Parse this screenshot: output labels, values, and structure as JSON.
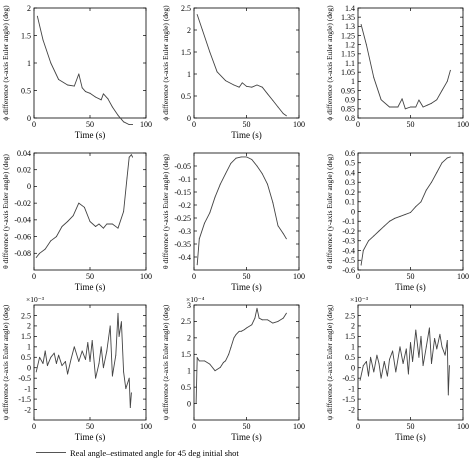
{
  "legend": {
    "label": "Real angle–estimated angle for 45 deg initial shot",
    "color": "#444444"
  },
  "chart_data": [
    {
      "type": "line",
      "panel": "phi-1",
      "xlabel": "Time (s)",
      "ylabel": "ϕ difference (x-axis Euler angle) (deg)",
      "xlim": [
        0,
        100
      ],
      "ylim": [
        0,
        2
      ],
      "xticks": [
        0,
        50,
        100
      ],
      "yticks": [
        0,
        0.5,
        1,
        1.5,
        2
      ],
      "multiplier": "",
      "series": [
        {
          "x": [
            3,
            8,
            15,
            22,
            30,
            36,
            40,
            43,
            46,
            50,
            55,
            60,
            62,
            66,
            70,
            75,
            80,
            85,
            88
          ],
          "y": [
            1.85,
            1.42,
            1.0,
            0.7,
            0.6,
            0.58,
            0.8,
            0.55,
            0.48,
            0.45,
            0.38,
            0.33,
            0.44,
            0.35,
            0.2,
            0.05,
            -0.07,
            -0.12,
            -0.12
          ]
        }
      ]
    },
    {
      "type": "line",
      "panel": "phi-2",
      "xlabel": "Time (s)",
      "ylabel": "ϕ difference (x-axis Euler angle) (deg)",
      "xlim": [
        0,
        100
      ],
      "ylim": [
        0,
        2.5
      ],
      "xticks": [
        0,
        50,
        100
      ],
      "yticks": [
        0,
        0.5,
        1,
        1.5,
        2,
        2.5
      ],
      "multiplier": "",
      "series": [
        {
          "x": [
            3,
            8,
            15,
            22,
            30,
            38,
            43,
            46,
            50,
            55,
            60,
            65,
            70,
            75,
            80,
            85,
            88
          ],
          "y": [
            2.35,
            2.0,
            1.5,
            1.05,
            0.85,
            0.75,
            0.7,
            0.8,
            0.72,
            0.7,
            0.75,
            0.7,
            0.55,
            0.4,
            0.25,
            0.1,
            0.05
          ]
        }
      ]
    },
    {
      "type": "line",
      "panel": "phi-3",
      "xlabel": "",
      "ylabel": "ϕ difference (x-axis Euler angle) (deg)",
      "xlim": [
        0,
        100
      ],
      "ylim": [
        0.8,
        1.4
      ],
      "xticks": [
        0,
        50,
        100
      ],
      "yticks": [
        0.8,
        0.85,
        0.9,
        0.95,
        1,
        1.05,
        1.1,
        1.15,
        1.2,
        1.25,
        1.3,
        1.35,
        1.4
      ],
      "multiplier": "",
      "series": [
        {
          "x": [
            3,
            8,
            15,
            22,
            30,
            38,
            42,
            45,
            50,
            55,
            58,
            62,
            66,
            70,
            75,
            80,
            85,
            88
          ],
          "y": [
            1.31,
            1.2,
            1.02,
            0.9,
            0.86,
            0.86,
            0.905,
            0.85,
            0.86,
            0.86,
            0.898,
            0.86,
            0.87,
            0.88,
            0.9,
            0.95,
            1.0,
            1.06
          ]
        }
      ]
    },
    {
      "type": "line",
      "panel": "theta-1",
      "xlabel": "Time (s)",
      "ylabel": "θ difference (y-axis Euler angle) (deg)",
      "xlim": [
        0,
        100
      ],
      "ylim": [
        -0.1,
        0.04
      ],
      "xticks": [
        0,
        50,
        100
      ],
      "yticks": [
        -0.08,
        -0.06,
        -0.04,
        -0.02,
        0,
        0.02,
        0.04
      ],
      "multiplier": "",
      "series": [
        {
          "x": [
            2,
            5,
            10,
            15,
            20,
            25,
            30,
            35,
            40,
            45,
            50,
            55,
            58,
            62,
            65,
            70,
            75,
            80,
            83,
            85,
            87,
            88
          ],
          "y": [
            -0.085,
            -0.08,
            -0.075,
            -0.065,
            -0.06,
            -0.048,
            -0.042,
            -0.035,
            -0.02,
            -0.025,
            -0.042,
            -0.048,
            -0.045,
            -0.05,
            -0.045,
            -0.045,
            -0.05,
            -0.03,
            0.01,
            0.035,
            0.038,
            0.035
          ]
        }
      ]
    },
    {
      "type": "line",
      "panel": "theta-2",
      "xlabel": "Time (s)",
      "ylabel": "θ difference (y-axis Euler angle) (deg)",
      "xlim": [
        0,
        100
      ],
      "ylim": [
        -0.45,
        -0.0
      ],
      "xticks": [
        0,
        50,
        100
      ],
      "yticks": [
        -0.4,
        -0.35,
        -0.3,
        -0.25,
        -0.2,
        -0.15,
        -0.1,
        -0.05
      ],
      "multiplier": "",
      "series": [
        {
          "x": [
            3,
            5,
            10,
            15,
            20,
            25,
            30,
            35,
            40,
            45,
            50,
            55,
            60,
            65,
            70,
            75,
            80,
            85,
            88
          ],
          "y": [
            -0.43,
            -0.33,
            -0.27,
            -0.23,
            -0.17,
            -0.12,
            -0.08,
            -0.04,
            -0.02,
            -0.015,
            -0.015,
            -0.025,
            -0.05,
            -0.08,
            -0.12,
            -0.19,
            -0.28,
            -0.31,
            -0.33
          ]
        }
      ]
    },
    {
      "type": "line",
      "panel": "theta-3",
      "xlabel": "Time (s)",
      "ylabel": "θ difference (y-axis Euler angle) (deg)",
      "xlim": [
        0,
        100
      ],
      "ylim": [
        -0.6,
        0.6
      ],
      "xticks": [
        0,
        50,
        100
      ],
      "yticks": [
        -0.6,
        -0.5,
        -0.4,
        -0.3,
        -0.2,
        -0.1,
        0,
        0.1,
        0.2,
        0.3,
        0.4,
        0.5,
        0.6
      ],
      "multiplier": "",
      "series": [
        {
          "x": [
            3,
            5,
            10,
            15,
            20,
            25,
            30,
            35,
            40,
            45,
            50,
            55,
            60,
            65,
            70,
            75,
            80,
            85,
            88
          ],
          "y": [
            -0.55,
            -0.4,
            -0.3,
            -0.25,
            -0.2,
            -0.15,
            -0.1,
            -0.07,
            -0.05,
            -0.03,
            -0.01,
            0.05,
            0.1,
            0.22,
            0.3,
            0.4,
            0.5,
            0.55,
            0.56
          ]
        }
      ]
    },
    {
      "type": "line",
      "panel": "psi-1",
      "xlabel": "Time (s)",
      "ylabel": "ψ difference (z-axis Euler angle) (deg)",
      "xlim": [
        0,
        100
      ],
      "ylim": [
        -2.5,
        3
      ],
      "xticks": [
        0,
        50,
        100
      ],
      "yticks": [
        -2,
        -1.5,
        -1,
        -0.5,
        0,
        0.5,
        1,
        1.5,
        2,
        2.5
      ],
      "multiplier": "×10⁻³",
      "series": [
        {
          "x": [
            2,
            5,
            8,
            10,
            12,
            15,
            18,
            20,
            22,
            25,
            28,
            30,
            33,
            36,
            40,
            43,
            46,
            48,
            50,
            52,
            55,
            58,
            60,
            62,
            65,
            68,
            70,
            73,
            75,
            76,
            78,
            80,
            82,
            85,
            86,
            87
          ],
          "y": [
            -0.2,
            0.5,
            0.2,
            0.8,
            0.1,
            0.5,
            0.7,
            0.2,
            0.6,
            0.1,
            0.3,
            -0.3,
            0.4,
            1.0,
            0.3,
            0.8,
            0.4,
            1.2,
            0.3,
            1.3,
            -0.5,
            0.2,
            1.0,
            0.0,
            0.8,
            2.0,
            -0.4,
            0.6,
            2.6,
            1.5,
            2.2,
            -0.2,
            -1.0,
            -0.5,
            -1.9,
            -1.2
          ]
        }
      ]
    },
    {
      "type": "line",
      "panel": "psi-2",
      "xlabel": "Time (s)",
      "ylabel": "ψ difference (z-axis Euler angle) (deg)",
      "xlim": [
        0,
        100
      ],
      "ylim": [
        -0.5,
        3
      ],
      "xticks": [
        0,
        50,
        100
      ],
      "yticks": [
        0,
        0.5,
        1,
        1.5,
        2,
        2.5,
        3
      ],
      "multiplier": "×10⁻⁴",
      "series": [
        {
          "x": [
            2,
            3,
            5,
            10,
            15,
            20,
            25,
            28,
            30,
            33,
            35,
            38,
            40,
            43,
            45,
            48,
            50,
            55,
            58,
            60,
            62,
            65,
            70,
            75,
            80,
            85,
            88
          ],
          "y": [
            0.0,
            1.4,
            1.3,
            1.3,
            1.2,
            1.0,
            1.1,
            1.25,
            1.3,
            1.5,
            1.7,
            2.0,
            2.1,
            2.2,
            2.2,
            2.25,
            2.3,
            2.4,
            2.6,
            2.9,
            2.6,
            2.55,
            2.55,
            2.45,
            2.5,
            2.6,
            2.75
          ]
        }
      ]
    },
    {
      "type": "line",
      "panel": "psi-3",
      "xlabel": "Time (s)",
      "ylabel": "ψ difference (z-axis Euler angle) (deg)",
      "xlim": [
        0,
        100
      ],
      "ylim": [
        -2.5,
        3
      ],
      "xticks": [
        0,
        50,
        100
      ],
      "yticks": [
        -2,
        -1.5,
        -1,
        -0.5,
        0,
        0.5,
        1,
        1.5,
        2,
        2.5
      ],
      "multiplier": "×10⁻³",
      "series": [
        {
          "x": [
            2,
            5,
            8,
            10,
            12,
            15,
            18,
            20,
            22,
            25,
            28,
            30,
            33,
            36,
            40,
            43,
            46,
            48,
            50,
            52,
            55,
            58,
            60,
            62,
            65,
            68,
            70,
            73,
            75,
            78,
            80,
            83,
            85,
            86,
            87
          ],
          "y": [
            -0.6,
            0.1,
            0.3,
            -0.4,
            0.5,
            -0.2,
            0.6,
            0.2,
            -0.5,
            0.3,
            -0.4,
            0.4,
            0.8,
            -0.2,
            1.0,
            0.2,
            0.9,
            -0.3,
            1.2,
            0.3,
            1.8,
            0.5,
            1.5,
            0.1,
            1.0,
            1.9,
            0.2,
            1.4,
            0.9,
            1.6,
            1.0,
            0.6,
            1.3,
            -1.3,
            0.1
          ]
        }
      ]
    }
  ]
}
